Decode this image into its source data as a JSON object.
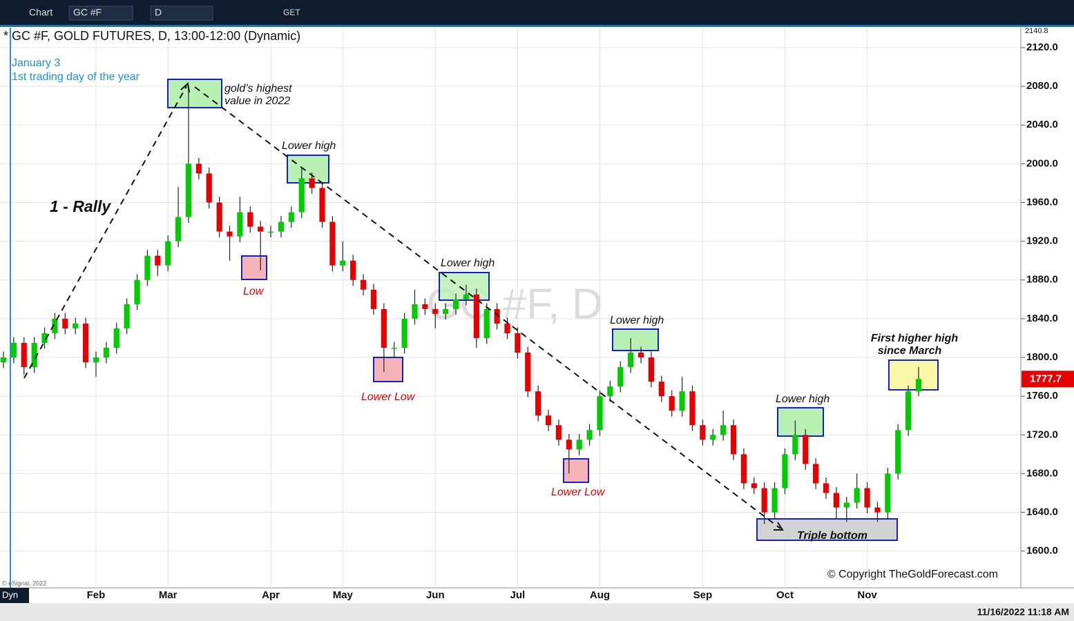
{
  "toolbar": {
    "app": "Chart",
    "symbol": "GC #F",
    "interval": "D",
    "get": "GET"
  },
  "footer": {
    "mode": "Dyn",
    "vendor": "© eSignal, 2022",
    "timestamp": "11/16/2022 11:18 AM"
  },
  "chart_data": {
    "type": "candlestick",
    "title": "* GC #F, GOLD FUTURES, D, 13:00-12:00 (Dynamic)",
    "watermark": "GC #F, D",
    "note": [
      "January 3",
      "1st trading day of the year"
    ],
    "copyright": "© Copyright TheGoldForecast.com",
    "annotations": [
      "gold’s highest",
      "value in 2022",
      "Lower high",
      "1 - Rally",
      "Low",
      "Lower high",
      "Lower Low",
      "Lower high",
      "Lower Low",
      "Lower high",
      "Triple bottom",
      "First higher high",
      "since March"
    ],
    "categories": [
      null,
      null,
      null,
      null,
      null,
      null,
      null,
      null,
      null,
      null,
      null,
      null,
      null,
      null,
      null,
      null,
      null,
      null,
      null,
      null,
      null,
      null,
      null,
      null,
      null,
      null,
      null,
      null,
      null,
      null,
      null,
      null,
      null,
      null,
      null,
      null,
      null,
      null,
      null,
      null,
      null,
      null,
      null,
      null,
      null,
      null,
      null,
      null,
      null,
      null,
      null,
      null,
      null,
      null,
      null,
      null,
      null,
      null,
      null,
      null,
      null,
      null,
      null,
      null,
      null,
      null,
      null,
      null,
      null,
      null,
      null,
      null,
      null,
      null,
      null,
      null,
      null,
      null,
      null,
      null,
      null,
      null,
      null,
      null,
      null,
      null,
      null,
      null,
      null,
      null
    ],
    "xticks": [
      {
        "value": 9,
        "label": "Feb"
      },
      {
        "value": 16,
        "label": "Mar"
      },
      {
        "value": 26,
        "label": "Apr"
      },
      {
        "value": 33,
        "label": "May"
      },
      {
        "value": 42,
        "label": "Jun"
      },
      {
        "value": 50,
        "label": "Jul"
      },
      {
        "value": 58,
        "label": "Aug"
      },
      {
        "value": 68,
        "label": "Sep"
      },
      {
        "value": 76,
        "label": "Oct"
      },
      {
        "value": 84,
        "label": "Nov"
      }
    ],
    "open": [
      1795,
      1800,
      1815,
      1790,
      1815,
      1825,
      1840,
      1830,
      1835,
      1795,
      1800,
      1810,
      1830,
      1855,
      1880,
      1905,
      1895,
      1920,
      1945,
      2000,
      1990,
      1960,
      1930,
      1925,
      1950,
      1935,
      1930,
      1930,
      1940,
      1950,
      1985,
      1975,
      1940,
      1895,
      1900,
      1880,
      1870,
      1850,
      1810,
      1810,
      1840,
      1855,
      1850,
      1845,
      1850,
      1860,
      1865,
      1820,
      1850,
      1835,
      1825,
      1805,
      1765,
      1740,
      1730,
      1715,
      1705,
      1715,
      1725,
      1760,
      1770,
      1790,
      1805,
      1800,
      1775,
      1760,
      1745,
      1765,
      1730,
      1715,
      1720,
      1730,
      1700,
      1670,
      1665,
      1640,
      1665,
      1700,
      1720,
      1690,
      1670,
      1660,
      1645,
      1650,
      1665,
      1645,
      1640,
      1680,
      1725,
      1765
    ],
    "high": [
      1806,
      1821,
      1821,
      1821,
      1831,
      1846,
      1846,
      1841,
      1841,
      1806,
      1816,
      1836,
      1861,
      1886,
      1911,
      1911,
      1926,
      1976,
      2078,
      2006,
      1996,
      1966,
      1936,
      1966,
      1956,
      1941,
      1936,
      1946,
      1956,
      1995,
      1991,
      1981,
      1946,
      1920,
      1906,
      1886,
      1876,
      1856,
      1816,
      1846,
      1870,
      1861,
      1856,
      1856,
      1866,
      1875,
      1871,
      1856,
      1856,
      1841,
      1831,
      1811,
      1771,
      1746,
      1736,
      1721,
      1721,
      1731,
      1766,
      1776,
      1796,
      1820,
      1811,
      1806,
      1781,
      1766,
      1780,
      1771,
      1736,
      1726,
      1745,
      1736,
      1706,
      1676,
      1671,
      1671,
      1706,
      1735,
      1726,
      1696,
      1676,
      1666,
      1656,
      1680,
      1671,
      1651,
      1686,
      1731,
      1771,
      1790
    ],
    "low": [
      1789,
      1794,
      1782,
      1784,
      1809,
      1819,
      1824,
      1824,
      1789,
      1780,
      1794,
      1804,
      1824,
      1849,
      1874,
      1884,
      1889,
      1914,
      1939,
      1984,
      1954,
      1924,
      1900,
      1919,
      1929,
      1890,
      1924,
      1924,
      1934,
      1944,
      1969,
      1934,
      1889,
      1889,
      1874,
      1864,
      1844,
      1785,
      1800,
      1804,
      1834,
      1844,
      1830,
      1839,
      1844,
      1854,
      1810,
      1814,
      1829,
      1819,
      1799,
      1759,
      1734,
      1724,
      1709,
      1680,
      1699,
      1709,
      1719,
      1754,
      1764,
      1784,
      1794,
      1769,
      1754,
      1739,
      1739,
      1724,
      1709,
      1709,
      1714,
      1694,
      1664,
      1659,
      1628,
      1634,
      1659,
      1694,
      1684,
      1664,
      1654,
      1634,
      1630,
      1644,
      1639,
      1630,
      1634,
      1674,
      1719,
      1760
    ],
    "close": [
      1800,
      1815,
      1790,
      1815,
      1825,
      1840,
      1830,
      1835,
      1795,
      1800,
      1810,
      1830,
      1855,
      1880,
      1905,
      1895,
      1920,
      1945,
      2000,
      1990,
      1960,
      1930,
      1925,
      1950,
      1935,
      1930,
      1930,
      1940,
      1950,
      1985,
      1975,
      1940,
      1895,
      1900,
      1880,
      1870,
      1850,
      1810,
      1810,
      1840,
      1855,
      1850,
      1845,
      1850,
      1860,
      1865,
      1820,
      1850,
      1835,
      1825,
      1805,
      1765,
      1740,
      1730,
      1715,
      1705,
      1715,
      1725,
      1760,
      1770,
      1790,
      1805,
      1800,
      1775,
      1760,
      1745,
      1765,
      1730,
      1715,
      1720,
      1730,
      1700,
      1670,
      1665,
      1640,
      1665,
      1700,
      1720,
      1690,
      1670,
      1660,
      1645,
      1650,
      1665,
      1645,
      1640,
      1680,
      1725,
      1765,
      1777.7
    ],
    "up_color": "#00cc00",
    "down_color": "#e60000",
    "ylim": [
      1562,
      2140.8
    ],
    "yticks": [
      {
        "value": 1600,
        "label": "1600.0"
      },
      {
        "value": 1640,
        "label": "1640.0"
      },
      {
        "value": 1680,
        "label": "1680.0"
      },
      {
        "value": 1720,
        "label": "1720.0"
      },
      {
        "value": 1760,
        "label": "1760.0"
      },
      {
        "value": 1800,
        "label": "1800.0"
      },
      {
        "value": 1840,
        "label": "1840.0"
      },
      {
        "value": 1880,
        "label": "1880.0"
      },
      {
        "value": 1920,
        "label": "1920.0"
      },
      {
        "value": 1960,
        "label": "1960.0"
      },
      {
        "value": 2000,
        "label": "2000.0"
      },
      {
        "value": 2040,
        "label": "2040.0"
      },
      {
        "value": 2080,
        "label": "2080.0"
      },
      {
        "value": 2120,
        "label": "2120.0"
      }
    ],
    "grid": true
  }
}
